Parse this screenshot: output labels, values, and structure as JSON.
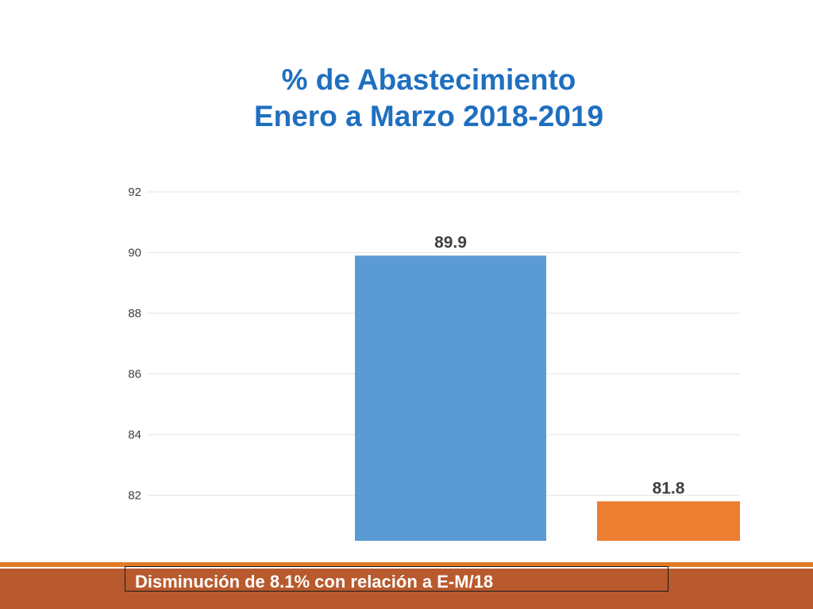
{
  "chart_data": {
    "type": "bar",
    "title": "% de Abastecimiento",
    "subtitle": "Enero a Marzo 2018-2019",
    "categories": [
      "",
      ""
    ],
    "values": [
      89.9,
      81.8
    ],
    "data_labels": [
      "89.9",
      "81.8"
    ],
    "colors": [
      "#5b9bd5",
      "#ed7d31"
    ],
    "ylim": [
      80.5,
      92
    ],
    "yticks": [
      82,
      84,
      86,
      88,
      90,
      92
    ],
    "grid": true,
    "xlabel": "",
    "ylabel": ""
  },
  "footer": {
    "text": "Disminución de 8.1% con relación a E-M/18"
  }
}
